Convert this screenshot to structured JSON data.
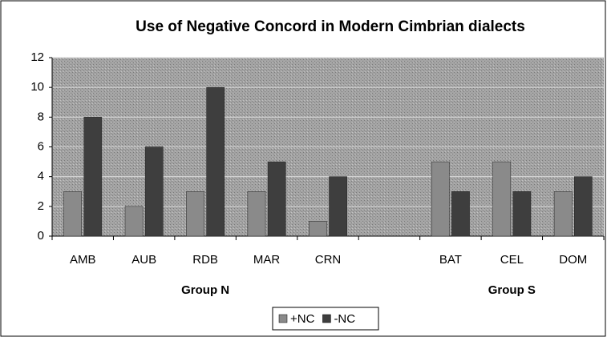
{
  "chart_data": {
    "type": "bar",
    "title": "Use of Negative Concord in Modern Cimbrian dialects",
    "categories": [
      "AMB",
      "AUB",
      "RDB",
      "MAR",
      "CRN",
      null,
      "BAT",
      "CEL",
      "DOM"
    ],
    "series": [
      {
        "name": "+NC",
        "color": "#8a8a8a",
        "values": [
          3,
          2,
          3,
          3,
          1,
          null,
          5,
          5,
          3
        ]
      },
      {
        "name": "-NC",
        "color": "#3e3e3e",
        "values": [
          8,
          6,
          10,
          5,
          4,
          null,
          3,
          3,
          4
        ]
      }
    ],
    "annotations": [
      "Group N",
      "Group S"
    ],
    "ylim": [
      0,
      12
    ],
    "yticks": [
      0,
      2,
      4,
      6,
      8,
      10,
      12
    ],
    "grid": true,
    "legend": "bottom"
  }
}
